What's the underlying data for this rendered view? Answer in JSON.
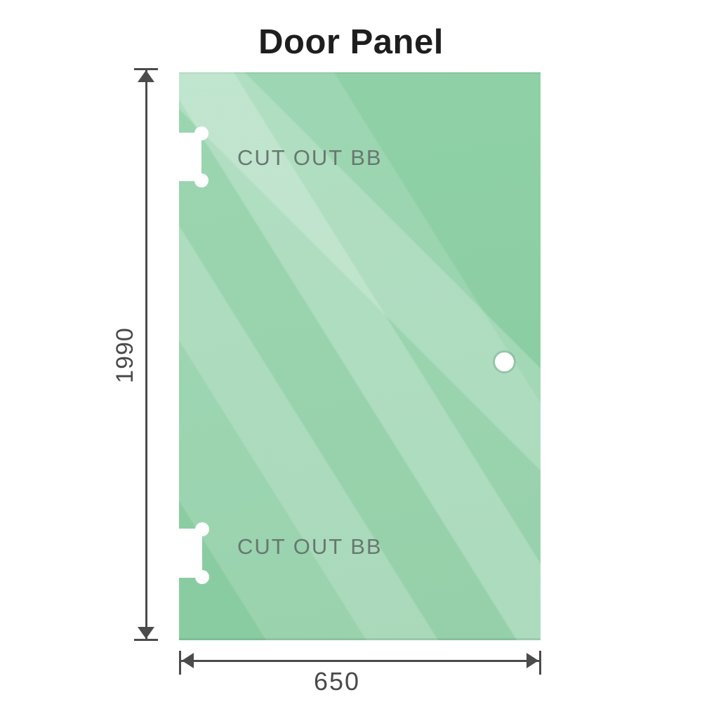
{
  "title": "Door Panel",
  "panel": {
    "glass_color": "#8ecfa6",
    "sheen_color": "#bde7cd",
    "cutouts": [
      {
        "label": "CUT OUT BB",
        "position": "top-left"
      },
      {
        "label": "CUT OUT BB",
        "position": "bottom-left"
      }
    ],
    "handle_hole": {
      "shape": "circle",
      "position": "right-middle"
    }
  },
  "dimensions": {
    "height": {
      "value": "1990",
      "orientation": "vertical"
    },
    "width": {
      "value": "650",
      "orientation": "horizontal"
    },
    "line_color": "#4b4b4b",
    "text_color": "#4a4a4a"
  }
}
